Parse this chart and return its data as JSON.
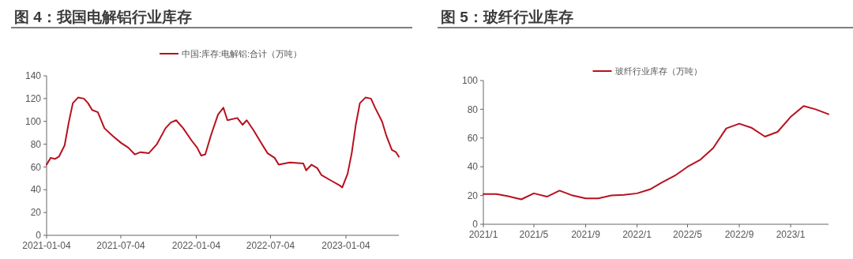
{
  "chart_data": [
    {
      "type": "line",
      "title": "图 4：我国电解铝行业库存",
      "legend": "top",
      "x": [
        "2021-01-04",
        "2021-01-14",
        "2021-01-24",
        "2021-02-03",
        "2021-02-17",
        "2021-02-27",
        "2021-03-09",
        "2021-03-22",
        "2021-04-05",
        "2021-04-15",
        "2021-04-25",
        "2021-05-09",
        "2021-05-25",
        "2021-06-15",
        "2021-07-05",
        "2021-07-22",
        "2021-08-07",
        "2021-08-21",
        "2021-09-10",
        "2021-09-30",
        "2021-10-21",
        "2021-11-03",
        "2021-11-16",
        "2021-12-03",
        "2021-12-24",
        "2022-01-06",
        "2022-01-16",
        "2022-01-26",
        "2022-02-09",
        "2022-02-26",
        "2022-03-11",
        "2022-03-21",
        "2022-04-14",
        "2022-04-27",
        "2022-05-07",
        "2022-05-24",
        "2022-06-13",
        "2022-06-27",
        "2022-07-14",
        "2022-07-24",
        "2022-08-20",
        "2022-09-22",
        "2022-09-29",
        "2022-10-12",
        "2022-10-26",
        "2022-11-05",
        "2022-11-29",
        "2022-12-19",
        "2022-12-26",
        "2023-01-08",
        "2023-01-18",
        "2023-01-28",
        "2023-02-07",
        "2023-02-21",
        "2023-03-06",
        "2023-03-16",
        "2023-04-02",
        "2023-04-12",
        "2023-04-26",
        "2023-05-06",
        "2023-05-13"
      ],
      "series": [
        {
          "name": "中国:库存:电解铝:合计（万吨）",
          "color": "#b8101e",
          "values": [
            62,
            68,
            67,
            69,
            79,
            99,
            116,
            121,
            120,
            116,
            110,
            108,
            94,
            87,
            81,
            77,
            71,
            73,
            72,
            80,
            94,
            99,
            101,
            94,
            83,
            77,
            70,
            71,
            88,
            106,
            112,
            101,
            103,
            97,
            101,
            92,
            80,
            72,
            68,
            62,
            64,
            63,
            57,
            62,
            59,
            53,
            48,
            44,
            42,
            54,
            72,
            97,
            116,
            121,
            120,
            112,
            100,
            88,
            75,
            73,
            69
          ]
        }
      ],
      "xlim": [
        "2021-01-04",
        "2023-05-13"
      ],
      "xticks": [
        {
          "value": "2021-01-04",
          "label": "2021-01-04"
        },
        {
          "value": "2021-07-04",
          "label": "2021-07-04"
        },
        {
          "value": "2022-01-04",
          "label": "2022-01-04"
        },
        {
          "value": "2022-07-04",
          "label": "2022-07-04"
        },
        {
          "value": "2023-01-04",
          "label": "2023-01-04"
        }
      ],
      "ylim": [
        0,
        140
      ],
      "yticks": [
        0,
        20,
        40,
        60,
        80,
        100,
        120,
        140
      ]
    },
    {
      "type": "line",
      "title": "图 5：玻纤行业库存",
      "legend": "top",
      "x": [
        "2021-01",
        "2021-02",
        "2021-03",
        "2021-04",
        "2021-05",
        "2021-06",
        "2021-07",
        "2021-08",
        "2021-09",
        "2021-10",
        "2021-11",
        "2021-12",
        "2022-01",
        "2022-02",
        "2022-03",
        "2022-04",
        "2022-05",
        "2022-06",
        "2022-07",
        "2022-08",
        "2022-09",
        "2022-10",
        "2022-11",
        "2022-12",
        "2023-01",
        "2023-02",
        "2023-03",
        "2023-04"
      ],
      "series": [
        {
          "name": "玻纤行业库存（万吨）",
          "color": "#b8101e",
          "values": [
            21,
            21,
            19.5,
            17.3,
            21.5,
            19.2,
            23.4,
            20,
            18,
            18,
            20,
            20.5,
            21.5,
            24.3,
            29,
            33.8,
            40,
            45,
            53,
            66.7,
            70,
            67,
            61,
            64.3,
            74.7,
            82.3,
            80,
            76.6
          ]
        }
      ],
      "xlim": [
        "2021-01",
        "2023-04"
      ],
      "xticks": [
        {
          "value": "2021-01",
          "label": "2021/1"
        },
        {
          "value": "2021-05",
          "label": "2021/5"
        },
        {
          "value": "2021-09",
          "label": "2021/9"
        },
        {
          "value": "2022-01",
          "label": "2022/1"
        },
        {
          "value": "2022-05",
          "label": "2022/5"
        },
        {
          "value": "2022-09",
          "label": "2022/9"
        },
        {
          "value": "2023-01",
          "label": "2023/1"
        }
      ],
      "ylim": [
        0,
        100
      ],
      "yticks": [
        0,
        20,
        40,
        60,
        80,
        100
      ]
    }
  ]
}
